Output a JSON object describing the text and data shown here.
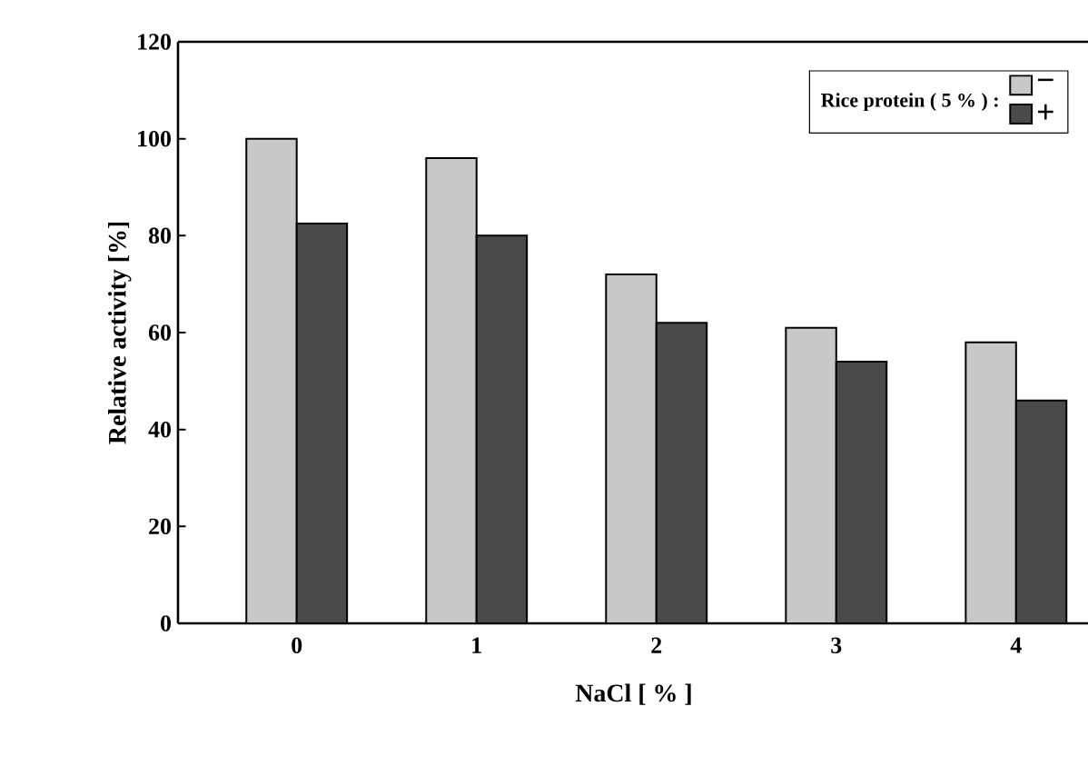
{
  "chart_data": {
    "type": "bar",
    "xlabel": "NaCl  [ % ]",
    "ylabel": "Relative  activity   [%]",
    "legend_title": "Rice protein ( 5 % ) :",
    "categories": [
      "0",
      "1",
      "2",
      "3",
      "4"
    ],
    "series": [
      {
        "name": "−",
        "color": "#c8c8c8",
        "values": [
          100,
          96,
          72,
          61,
          58
        ]
      },
      {
        "name": "+",
        "color": "#4a4a4a",
        "values": [
          82.5,
          80,
          62,
          54,
          46
        ]
      }
    ],
    "ylim": [
      0,
      120
    ],
    "yticks": [
      0,
      20,
      40,
      60,
      80,
      100,
      120
    ],
    "grid": false,
    "legend": "top right"
  }
}
